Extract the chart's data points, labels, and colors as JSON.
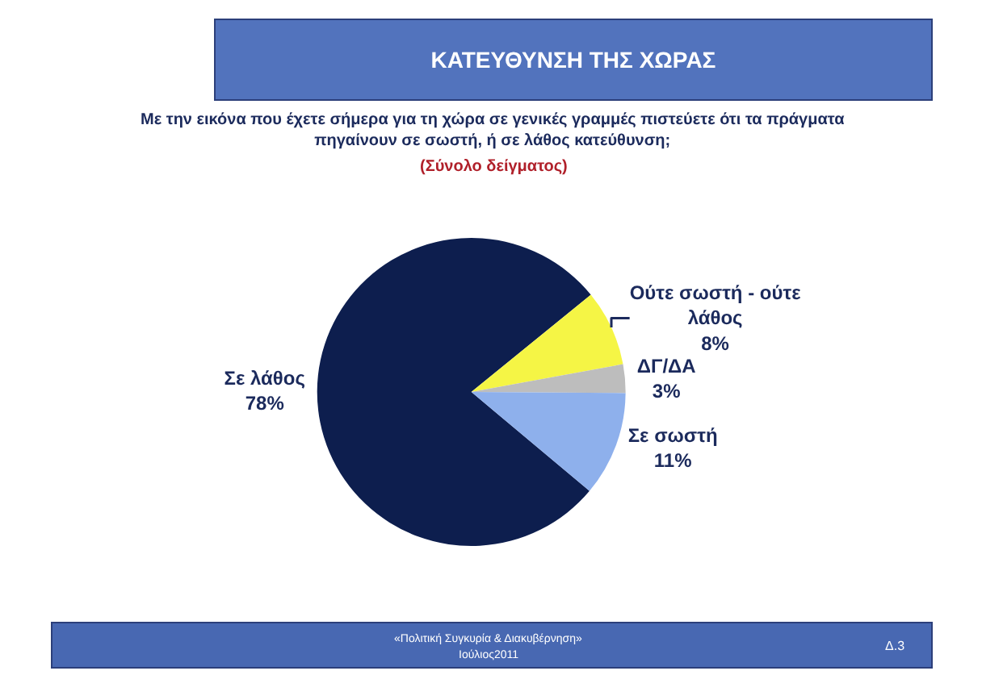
{
  "chart_data": {
    "type": "pie",
    "title": "ΚΑΤΕΥΘΥΝΣΗ ΤΗΣ ΧΩΡΑΣ",
    "subtitle": "Με την εικόνα που έχετε σήμερα για τη χώρα σε γενικές γραμμές πιστεύετε ότι τα πράγματα πηγαίνουν σε σωστή, ή σε λάθος κατεύθυνση;",
    "annotations": [
      "(Σύνολο δείγματος)",
      "«Πολιτική Συγκυρία & Διακυβέρνηση»",
      "Ιούλιος2011",
      "Δ.3"
    ],
    "categories": [
      "Σε λάθος",
      "Ούτε σωστή - ούτε λάθος",
      "ΔΓ/ΔΑ",
      "Σε σωστή"
    ],
    "values": [
      78,
      8,
      3,
      11
    ],
    "value_labels": [
      "78%",
      "8%",
      "3%",
      "11%"
    ],
    "colors": [
      "#0d1e4e",
      "#f5f545",
      "#bdbdbd",
      "#8eb0ec"
    ]
  }
}
